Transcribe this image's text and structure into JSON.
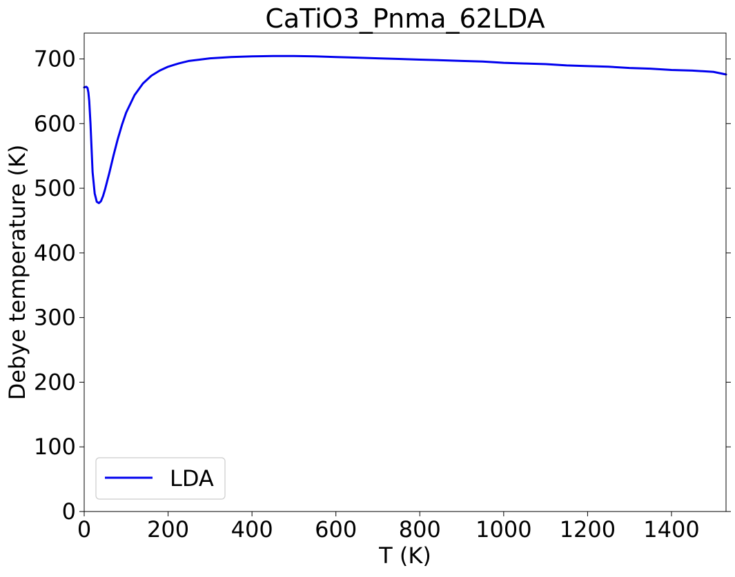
{
  "chart_data": {
    "type": "line",
    "title": "CaTiO3_Pnma_62LDA",
    "xlabel": "T (K)",
    "ylabel": "Debye temperature (K)",
    "xlim": [
      0,
      1530
    ],
    "ylim": [
      0,
      740
    ],
    "xticks": [
      0,
      200,
      400,
      600,
      800,
      1000,
      1200,
      1400
    ],
    "yticks": [
      0,
      100,
      200,
      300,
      400,
      500,
      600,
      700
    ],
    "grid": false,
    "legend_position": "lower-left",
    "series": [
      {
        "name": "LDA",
        "color": "#0000ee",
        "x": [
          0,
          5,
          8,
          10,
          12,
          15,
          18,
          20,
          25,
          30,
          35,
          40,
          45,
          50,
          60,
          70,
          80,
          90,
          100,
          120,
          140,
          160,
          180,
          200,
          225,
          250,
          275,
          300,
          350,
          400,
          450,
          500,
          550,
          600,
          650,
          700,
          750,
          800,
          850,
          900,
          950,
          1000,
          1050,
          1100,
          1150,
          1200,
          1250,
          1300,
          1350,
          1400,
          1450,
          1500,
          1530
        ],
        "y": [
          656,
          657,
          655,
          648,
          635,
          600,
          555,
          525,
          492,
          479,
          477,
          480,
          488,
          499,
          524,
          551,
          576,
          598,
          617,
          644,
          662,
          674,
          682,
          688,
          693,
          697,
          699,
          701,
          703,
          704,
          704.5,
          704.5,
          704,
          703,
          702,
          701,
          700,
          699,
          698,
          697,
          696,
          694,
          693,
          692,
          690,
          689,
          688,
          686,
          685,
          683,
          682,
          680,
          676
        ]
      }
    ]
  }
}
